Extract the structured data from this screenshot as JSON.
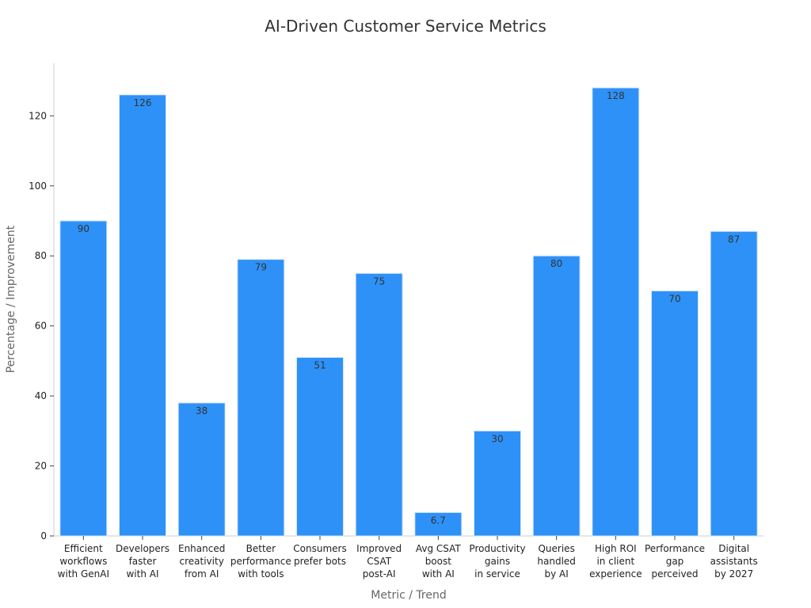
{
  "chart_data": {
    "type": "bar",
    "title": "AI-Driven Customer Service Metrics",
    "xlabel": "Metric / Trend",
    "ylabel": "Percentage / Improvement",
    "categories": [
      "Efficient workflows with GenAI",
      "Developers faster with AI",
      "Enhanced creativity from AI",
      "Better performance with tools",
      "Consumers prefer bots",
      "Improved CSAT post-AI",
      "Avg CSAT boost with AI",
      "Productivity gains in service",
      "Queries handled by AI",
      "High ROI in client experience",
      "Performance gap perceived",
      "Digital assistants by 2027"
    ],
    "category_lines": [
      [
        "Efficient",
        "workflows",
        "with GenAI"
      ],
      [
        "Developers",
        "faster",
        "with AI"
      ],
      [
        "Enhanced",
        "creativity",
        "from AI"
      ],
      [
        "Better",
        "performance",
        "with tools"
      ],
      [
        "Consumers",
        "prefer bots"
      ],
      [
        "Improved",
        "CSAT",
        "post-AI"
      ],
      [
        "Avg CSAT",
        "boost",
        "with AI"
      ],
      [
        "Productivity",
        "gains",
        "in service"
      ],
      [
        "Queries",
        "handled",
        "by AI"
      ],
      [
        "High ROI",
        "in client",
        "experience"
      ],
      [
        "Performance",
        "gap",
        "perceived"
      ],
      [
        "Digital",
        "assistants",
        "by 2027"
      ]
    ],
    "values": [
      90,
      126,
      38,
      79,
      51,
      75,
      6.7,
      30,
      80,
      128,
      70,
      87
    ],
    "data_labels": [
      "90",
      "126",
      "38",
      "79",
      "51",
      "75",
      "6.7",
      "30",
      "80",
      "128",
      "70",
      "87"
    ],
    "ylim": [
      0,
      135
    ],
    "yticks": [
      0,
      20,
      40,
      60,
      80,
      100,
      120
    ],
    "grid": false,
    "legend": "none",
    "colors": {
      "bar": "#2e91f8",
      "bar_edge": "#d6e6f7",
      "axis": "#cccccc",
      "tick_text": "#222222",
      "label_text": "#666666",
      "title_text": "#333333",
      "data_label_text": "#333333"
    }
  }
}
